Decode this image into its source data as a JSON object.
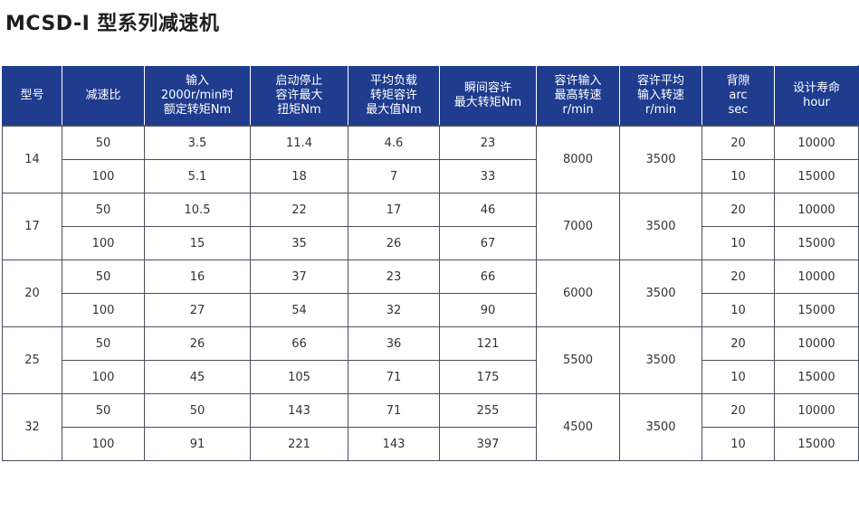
{
  "title": "MCSD-I 型系列减速机",
  "headers": [
    [
      "型号"
    ],
    [
      "减速比"
    ],
    [
      "输入",
      "2000r/min时",
      "额定转矩Nm"
    ],
    [
      "启动停止",
      "容许最大",
      "扭矩Nm"
    ],
    [
      "平均负载",
      "转矩容许",
      "最大值Nm"
    ],
    [
      "瞬间容许",
      "最大转矩Nm"
    ],
    [
      "容许输入",
      "最高转速",
      "r/min"
    ],
    [
      "容许平均",
      "输入转速",
      "r/min"
    ],
    [
      "背隙",
      "arc",
      "sec"
    ],
    [
      "设计寿命",
      "hour"
    ]
  ],
  "models": [
    {
      "model": "14",
      "max_speed": "8000",
      "avg_speed": "3500",
      "rows": [
        {
          "ratio": "50",
          "rated": "3.5",
          "startstop": "11.4",
          "avgload": "4.6",
          "instant": "23",
          "backlash": "20",
          "life": "10000"
        },
        {
          "ratio": "100",
          "rated": "5.1",
          "startstop": "18",
          "avgload": "7",
          "instant": "33",
          "backlash": "10",
          "life": "15000"
        }
      ]
    },
    {
      "model": "17",
      "max_speed": "7000",
      "avg_speed": "3500",
      "rows": [
        {
          "ratio": "50",
          "rated": "10.5",
          "startstop": "22",
          "avgload": "17",
          "instant": "46",
          "backlash": "20",
          "life": "10000"
        },
        {
          "ratio": "100",
          "rated": "15",
          "startstop": "35",
          "avgload": "26",
          "instant": "67",
          "backlash": "10",
          "life": "15000"
        }
      ]
    },
    {
      "model": "20",
      "max_speed": "6000",
      "avg_speed": "3500",
      "rows": [
        {
          "ratio": "50",
          "rated": "16",
          "startstop": "37",
          "avgload": "23",
          "instant": "66",
          "backlash": "20",
          "life": "10000"
        },
        {
          "ratio": "100",
          "rated": "27",
          "startstop": "54",
          "avgload": "32",
          "instant": "90",
          "backlash": "10",
          "life": "15000"
        }
      ]
    },
    {
      "model": "25",
      "max_speed": "5500",
      "avg_speed": "3500",
      "rows": [
        {
          "ratio": "50",
          "rated": "26",
          "startstop": "66",
          "avgload": "36",
          "instant": "121",
          "backlash": "20",
          "life": "10000"
        },
        {
          "ratio": "100",
          "rated": "45",
          "startstop": "105",
          "avgload": "71",
          "instant": "175",
          "backlash": "10",
          "life": "15000"
        }
      ]
    },
    {
      "model": "32",
      "max_speed": "4500",
      "avg_speed": "3500",
      "rows": [
        {
          "ratio": "50",
          "rated": "50",
          "startstop": "143",
          "avgload": "71",
          "instant": "255",
          "backlash": "20",
          "life": "10000"
        },
        {
          "ratio": "100",
          "rated": "91",
          "startstop": "221",
          "avgload": "143",
          "instant": "397",
          "backlash": "10",
          "life": "15000"
        }
      ]
    }
  ],
  "colors": {
    "header_bg": "#1f3c8e",
    "header_text": "#ffffff",
    "border": "#4a4f5c",
    "text": "#333333"
  }
}
